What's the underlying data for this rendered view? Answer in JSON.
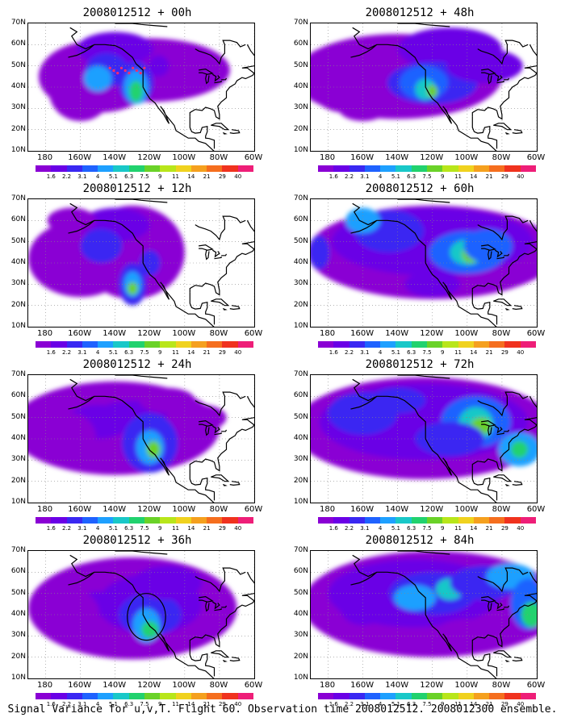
{
  "panels": [
    {
      "title": "2008012512 + 00h"
    },
    {
      "title": "2008012512 + 48h"
    },
    {
      "title": "2008012512 + 12h"
    },
    {
      "title": "2008012512 + 60h"
    },
    {
      "title": "2008012512 + 24h"
    },
    {
      "title": "2008012512 + 72h"
    },
    {
      "title": "2008012512 + 36h"
    },
    {
      "title": "2008012512 + 84h"
    }
  ],
  "axis": {
    "y_labels": [
      "70N",
      "60N",
      "50N",
      "40N",
      "30N",
      "20N",
      "10N"
    ],
    "x_labels": [
      "180",
      "160W",
      "140W",
      "120W",
      "100W",
      "80W",
      "60W"
    ]
  },
  "colorbar": {
    "labels": [
      "1.6",
      "2.2",
      "3.1",
      "4",
      "5.1",
      "6.3",
      "7.5",
      "9",
      "11",
      "14",
      "21",
      "29",
      "40"
    ],
    "colors": [
      "#8a00d4",
      "#6a00e6",
      "#3a28f2",
      "#1f62ff",
      "#1ea0ff",
      "#19c8c8",
      "#21d26e",
      "#6ad228",
      "#b8e61a",
      "#f0d21e",
      "#f5a01e",
      "#f56e1e",
      "#f0321e",
      "#ee1e78"
    ]
  },
  "footer": "Signal Variance for u,v,T. Flight 60. Observation time 2008012512. 2008012300 ensemble."
}
